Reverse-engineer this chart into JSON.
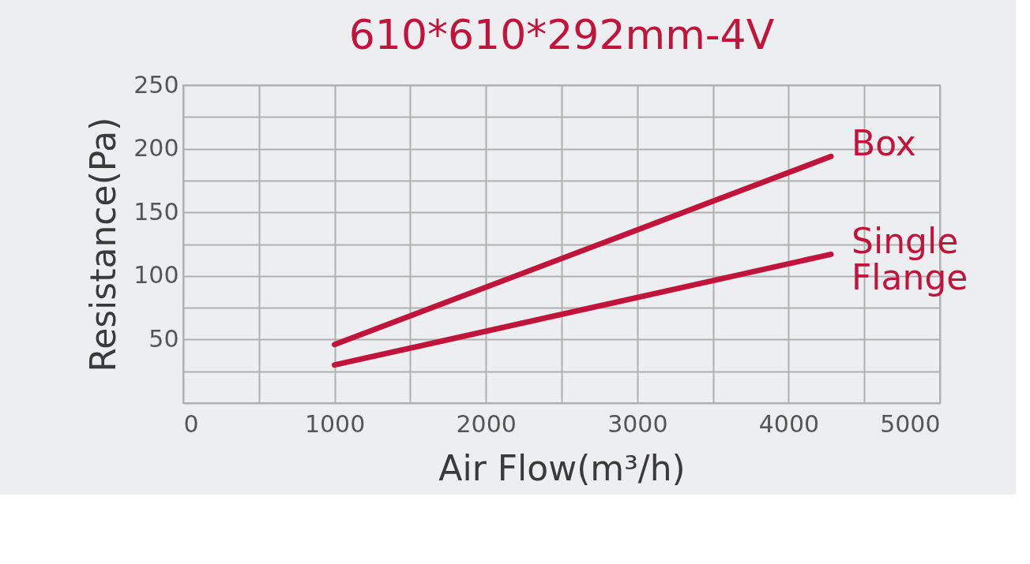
{
  "chart_data": {
    "type": "line",
    "title": "610*610*292mm-4V",
    "xlabel": "Air Flow(m³/h)",
    "ylabel": "Resistance(Pa)",
    "xlim": [
      0,
      5000
    ],
    "ylim": [
      0,
      250
    ],
    "xticks": [
      0,
      {
        "value": 500,
        "label": null
      },
      1000,
      {
        "value": 1500,
        "label": null
      },
      2000,
      {
        "value": 2500,
        "label": null
      },
      3000,
      {
        "value": 3500,
        "label": null
      },
      4000,
      {
        "value": 4500,
        "label": null
      },
      5000
    ],
    "yticks": [
      {
        "value": 0,
        "label": null
      },
      {
        "value": 25,
        "label": null
      },
      50,
      {
        "value": 75,
        "label": null
      },
      100,
      {
        "value": 125,
        "label": null
      },
      150,
      {
        "value": 175,
        "label": null
      },
      200,
      {
        "value": 225,
        "label": null
      },
      250
    ],
    "grid": true,
    "legend": false,
    "marker": "none",
    "line_style": "solid",
    "x": [
      1000,
      4280
    ],
    "series": [
      {
        "name": "Box",
        "color": "#c0143c",
        "values": [
          46,
          194
        ]
      },
      {
        "name": "Single Flange",
        "color": "#c0143c",
        "values": [
          30,
          117
        ]
      }
    ]
  }
}
